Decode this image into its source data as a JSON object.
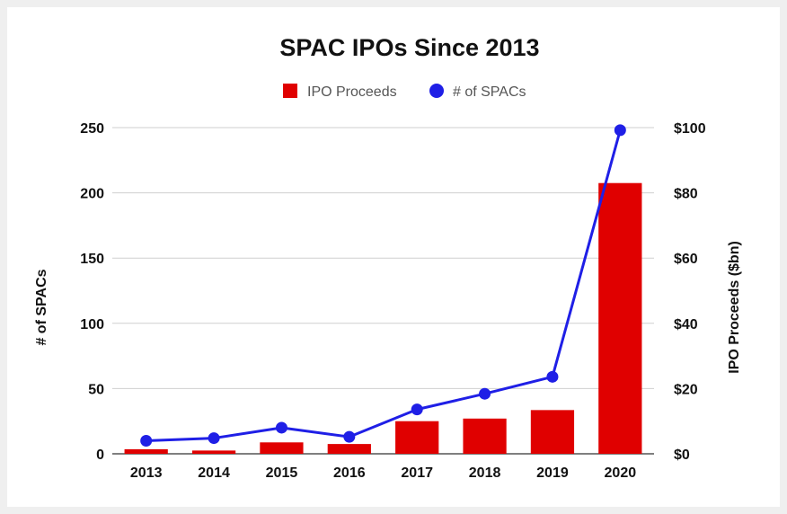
{
  "chart_data": {
    "type": "bar",
    "title": "SPAC IPOs Since 2013",
    "categories": [
      "2013",
      "2014",
      "2015",
      "2016",
      "2017",
      "2018",
      "2019",
      "2020"
    ],
    "series": [
      {
        "name": "IPO Proceeds",
        "type": "bar",
        "axis": "right",
        "color": "#e00000",
        "values": [
          1.4,
          1.0,
          3.5,
          3.0,
          10.0,
          10.8,
          13.4,
          83.0
        ]
      },
      {
        "name": "# of SPACs",
        "type": "line",
        "axis": "left",
        "color": "#1f1fe6",
        "values": [
          10,
          12,
          20,
          13,
          34,
          46,
          59,
          248
        ]
      }
    ],
    "ylabel_left": "# of SPACs",
    "ylabel_right": "IPO Proceeds ($bn)",
    "ylim_left": [
      0,
      250
    ],
    "ylim_right": [
      0,
      100
    ],
    "yticks_left": [
      "0",
      "50",
      "100",
      "150",
      "200",
      "250"
    ],
    "yticks_right": [
      "$0",
      "$20",
      "$40",
      "$60",
      "$80",
      "$100"
    ],
    "legend_position": "top-center",
    "grid": true
  }
}
